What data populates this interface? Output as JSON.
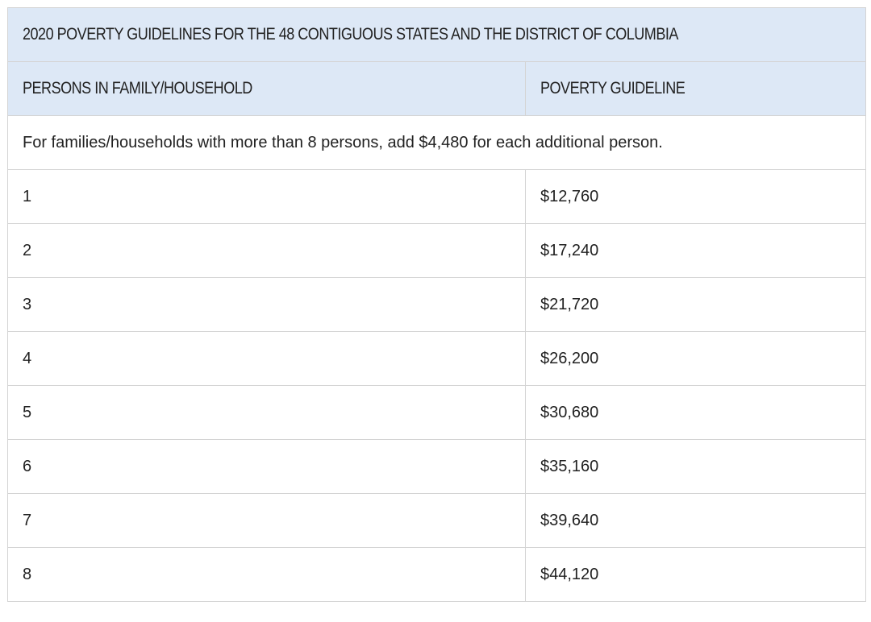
{
  "table": {
    "title": "2020 POVERTY GUIDELINES FOR THE 48 CONTIGUOUS STATES AND THE DISTRICT OF COLUMBIA",
    "headers": {
      "persons": "PERSONS IN FAMILY/HOUSEHOLD",
      "guideline": "POVERTY GUIDELINE"
    },
    "note": "For families/households with more than 8 persons, add $4,480 for each additional person.",
    "rows": [
      {
        "persons": "1",
        "guideline": "$12,760"
      },
      {
        "persons": "2",
        "guideline": "$17,240"
      },
      {
        "persons": "3",
        "guideline": "$21,720"
      },
      {
        "persons": "4",
        "guideline": "$26,200"
      },
      {
        "persons": "5",
        "guideline": "$30,680"
      },
      {
        "persons": "6",
        "guideline": "$35,160"
      },
      {
        "persons": "7",
        "guideline": "$39,640"
      },
      {
        "persons": "8",
        "guideline": "$44,120"
      }
    ]
  }
}
